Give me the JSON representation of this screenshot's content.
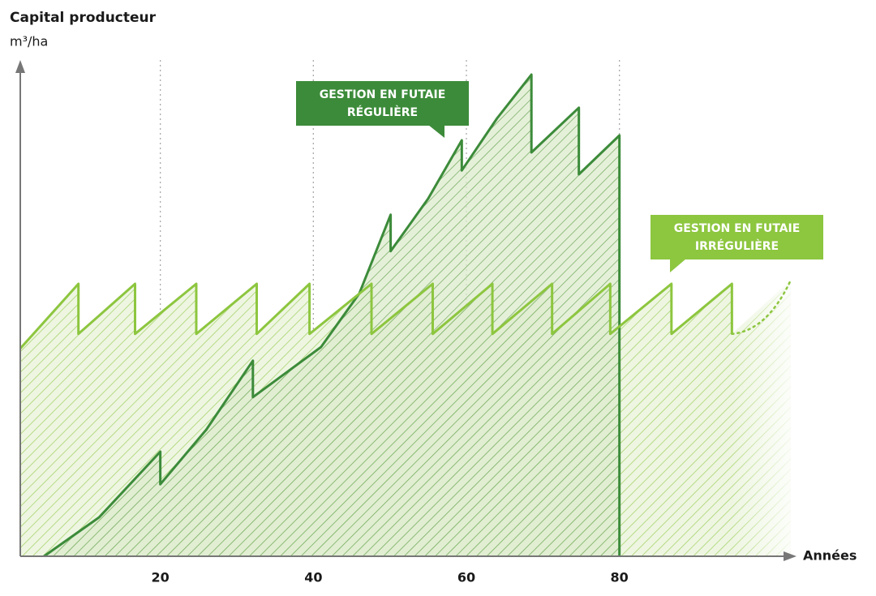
{
  "chart_data": {
    "type": "area",
    "title": "Capital producteur",
    "ylabel": "m³/ha",
    "xlabel": "Années",
    "xlim": [
      1.7,
      102.4
    ],
    "ylim": [
      0,
      100
    ],
    "xticks": [
      20,
      40,
      60,
      80
    ],
    "grid": true,
    "series": [
      {
        "name": "GESTION EN FUTAIE IRRÉGULIÈRE",
        "color": "#8dc63f",
        "dotted_tail": true,
        "x": [
          1.7,
          9.3,
          9.3,
          16.7,
          16.7,
          24.7,
          24.7,
          32.6,
          32.6,
          39.5,
          39.5,
          47.6,
          47.6,
          55.6,
          55.6,
          63.4,
          63.4,
          71.2,
          71.2,
          78.8,
          78.8,
          86.8,
          86.8,
          94.7,
          94.7,
          102.4
        ],
        "values": [
          42.7,
          56,
          45.7,
          56,
          45.7,
          56,
          45.7,
          56,
          45.7,
          56,
          45.7,
          56,
          45.7,
          56,
          45.7,
          56,
          45.7,
          56,
          45.7,
          56,
          45.7,
          56,
          45.7,
          56,
          45.7,
          56.8
        ]
      },
      {
        "name": "GESTION EN FUTAIE RÉGULIÈRE",
        "color": "#3c8b3a",
        "x": [
          4.8,
          12,
          20,
          20,
          26,
          32.1,
          32.1,
          41,
          46,
          50.1,
          50.1,
          55,
          59.4,
          59.4,
          64,
          68.5,
          68.5,
          74.7,
          74.7,
          80,
          80
        ],
        "values": [
          0,
          8,
          21.5,
          14.8,
          26,
          40.2,
          32.7,
          43,
          54,
          70.2,
          62.7,
          73.5,
          85.5,
          79.3,
          90,
          99,
          83,
          92.2,
          78.5,
          86.5,
          0
        ]
      }
    ]
  }
}
